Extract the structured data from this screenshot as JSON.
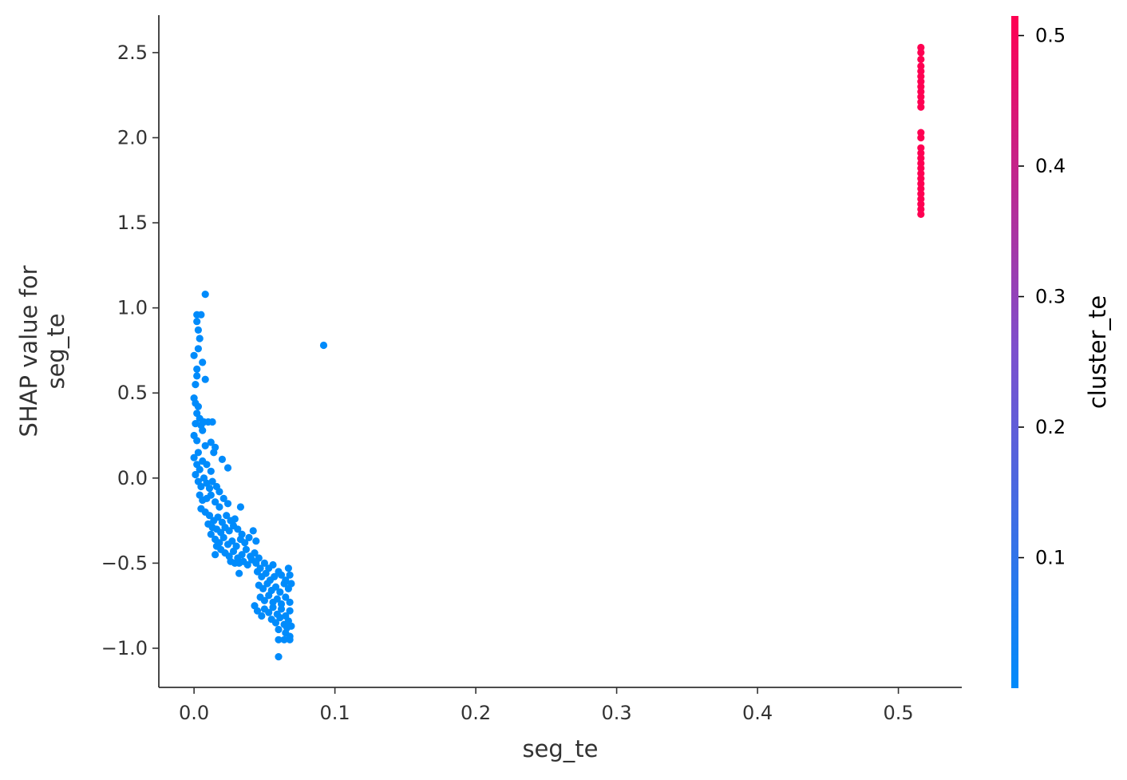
{
  "chart_data": {
    "type": "scatter",
    "title": "",
    "xlabel": "seg_te",
    "ylabel": "SHAP value for\nseg_te",
    "xlim": [
      -0.025,
      0.545
    ],
    "ylim": [
      -1.23,
      2.72
    ],
    "xticks": [
      0.0,
      0.1,
      0.2,
      0.3,
      0.4,
      0.5
    ],
    "xtick_labels": [
      "0.0",
      "0.1",
      "0.2",
      "0.3",
      "0.4",
      "0.5"
    ],
    "yticks": [
      -1.0,
      -0.5,
      0.0,
      0.5,
      1.0,
      1.5,
      2.0,
      2.5
    ],
    "ytick_labels": [
      "−1.0",
      "−0.5",
      "0.0",
      "0.5",
      "1.0",
      "1.5",
      "2.0",
      "2.5"
    ],
    "grid": false,
    "color_feature": "cluster_te",
    "colorbar": {
      "label": "cluster_te",
      "range": [
        0.0,
        0.515
      ],
      "ticks": [
        0.1,
        0.2,
        0.3,
        0.4,
        0.5
      ],
      "tick_labels": [
        "0.1",
        "0.2",
        "0.3",
        "0.4",
        "0.5"
      ],
      "low_color": "#008bfb",
      "high_color": "#ff0052"
    },
    "series": [
      {
        "color_value": 0.003,
        "color": "#008bfb",
        "points": [
          [
            0.008,
            1.08
          ],
          [
            0.002,
            0.96
          ],
          [
            0.005,
            0.96
          ],
          [
            0.002,
            0.92
          ],
          [
            0.003,
            0.87
          ],
          [
            0.004,
            0.82
          ],
          [
            0.003,
            0.76
          ],
          [
            0.0,
            0.72
          ],
          [
            0.002,
            0.64
          ],
          [
            0.006,
            0.68
          ],
          [
            0.002,
            0.6
          ],
          [
            0.008,
            0.58
          ],
          [
            0.001,
            0.55
          ],
          [
            0.0,
            0.47
          ],
          [
            0.001,
            0.44
          ],
          [
            0.003,
            0.42
          ],
          [
            0.002,
            0.38
          ],
          [
            0.004,
            0.35
          ],
          [
            0.001,
            0.32
          ],
          [
            0.005,
            0.31
          ],
          [
            0.0,
            0.25
          ],
          [
            0.002,
            0.22
          ],
          [
            0.007,
            0.33
          ],
          [
            0.01,
            0.33
          ],
          [
            0.013,
            0.33
          ],
          [
            0.006,
            0.28
          ],
          [
            0.003,
            0.15
          ],
          [
            0.008,
            0.19
          ],
          [
            0.012,
            0.21
          ],
          [
            0.015,
            0.18
          ],
          [
            0.014,
            0.15
          ],
          [
            0.0,
            0.12
          ],
          [
            0.002,
            0.08
          ],
          [
            0.004,
            0.05
          ],
          [
            0.006,
            0.1
          ],
          [
            0.009,
            0.08
          ],
          [
            0.012,
            0.04
          ],
          [
            0.02,
            0.11
          ],
          [
            0.024,
            0.06
          ],
          [
            0.001,
            0.02
          ],
          [
            0.003,
            -0.02
          ],
          [
            0.005,
            -0.05
          ],
          [
            0.007,
            0.0
          ],
          [
            0.009,
            -0.03
          ],
          [
            0.011,
            -0.06
          ],
          [
            0.013,
            -0.02
          ],
          [
            0.016,
            -0.05
          ],
          [
            0.018,
            -0.08
          ],
          [
            0.004,
            -0.1
          ],
          [
            0.006,
            -0.13
          ],
          [
            0.009,
            -0.12
          ],
          [
            0.012,
            -0.1
          ],
          [
            0.015,
            -0.14
          ],
          [
            0.018,
            -0.17
          ],
          [
            0.021,
            -0.12
          ],
          [
            0.024,
            -0.15
          ],
          [
            0.033,
            -0.17
          ],
          [
            0.005,
            -0.18
          ],
          [
            0.008,
            -0.2
          ],
          [
            0.011,
            -0.22
          ],
          [
            0.014,
            -0.25
          ],
          [
            0.017,
            -0.23
          ],
          [
            0.02,
            -0.26
          ],
          [
            0.023,
            -0.22
          ],
          [
            0.026,
            -0.25
          ],
          [
            0.029,
            -0.24
          ],
          [
            0.01,
            -0.27
          ],
          [
            0.013,
            -0.29
          ],
          [
            0.016,
            -0.3
          ],
          [
            0.019,
            -0.32
          ],
          [
            0.022,
            -0.29
          ],
          [
            0.025,
            -0.31
          ],
          [
            0.028,
            -0.28
          ],
          [
            0.031,
            -0.3
          ],
          [
            0.034,
            -0.33
          ],
          [
            0.042,
            -0.31
          ],
          [
            0.012,
            -0.33
          ],
          [
            0.015,
            -0.36
          ],
          [
            0.018,
            -0.38
          ],
          [
            0.021,
            -0.35
          ],
          [
            0.024,
            -0.39
          ],
          [
            0.027,
            -0.37
          ],
          [
            0.03,
            -0.4
          ],
          [
            0.033,
            -0.36
          ],
          [
            0.036,
            -0.38
          ],
          [
            0.039,
            -0.35
          ],
          [
            0.044,
            -0.37
          ],
          [
            0.016,
            -0.4
          ],
          [
            0.019,
            -0.42
          ],
          [
            0.015,
            -0.45
          ],
          [
            0.022,
            -0.44
          ],
          [
            0.025,
            -0.46
          ],
          [
            0.028,
            -0.43
          ],
          [
            0.031,
            -0.47
          ],
          [
            0.034,
            -0.45
          ],
          [
            0.037,
            -0.42
          ],
          [
            0.04,
            -0.46
          ],
          [
            0.043,
            -0.44
          ],
          [
            0.046,
            -0.47
          ],
          [
            0.026,
            -0.49
          ],
          [
            0.029,
            -0.5
          ],
          [
            0.032,
            -0.5
          ],
          [
            0.035,
            -0.49
          ],
          [
            0.038,
            -0.51
          ],
          [
            0.041,
            -0.48
          ],
          [
            0.044,
            -0.5
          ],
          [
            0.047,
            -0.53
          ],
          [
            0.05,
            -0.5
          ],
          [
            0.053,
            -0.53
          ],
          [
            0.056,
            -0.51
          ],
          [
            0.06,
            -0.55
          ],
          [
            0.067,
            -0.53
          ],
          [
            0.032,
            -0.56
          ],
          [
            0.045,
            -0.55
          ],
          [
            0.048,
            -0.58
          ],
          [
            0.051,
            -0.56
          ],
          [
            0.054,
            -0.6
          ],
          [
            0.057,
            -0.58
          ],
          [
            0.062,
            -0.57
          ],
          [
            0.065,
            -0.6
          ],
          [
            0.068,
            -0.57
          ],
          [
            0.046,
            -0.63
          ],
          [
            0.049,
            -0.65
          ],
          [
            0.052,
            -0.62
          ],
          [
            0.055,
            -0.66
          ],
          [
            0.058,
            -0.64
          ],
          [
            0.061,
            -0.67
          ],
          [
            0.064,
            -0.62
          ],
          [
            0.067,
            -0.65
          ],
          [
            0.069,
            -0.62
          ],
          [
            0.047,
            -0.7
          ],
          [
            0.05,
            -0.72
          ],
          [
            0.053,
            -0.69
          ],
          [
            0.056,
            -0.73
          ],
          [
            0.059,
            -0.71
          ],
          [
            0.062,
            -0.74
          ],
          [
            0.065,
            -0.7
          ],
          [
            0.068,
            -0.73
          ],
          [
            0.043,
            -0.75
          ],
          [
            0.05,
            -0.77
          ],
          [
            0.053,
            -0.79
          ],
          [
            0.056,
            -0.76
          ],
          [
            0.059,
            -0.8
          ],
          [
            0.062,
            -0.77
          ],
          [
            0.065,
            -0.81
          ],
          [
            0.068,
            -0.78
          ],
          [
            0.045,
            -0.78
          ],
          [
            0.048,
            -0.81
          ],
          [
            0.055,
            -0.83
          ],
          [
            0.058,
            -0.85
          ],
          [
            0.061,
            -0.82
          ],
          [
            0.064,
            -0.86
          ],
          [
            0.067,
            -0.84
          ],
          [
            0.069,
            -0.87
          ],
          [
            0.06,
            -0.89
          ],
          [
            0.065,
            -0.91
          ],
          [
            0.068,
            -0.93
          ],
          [
            0.066,
            -0.88
          ],
          [
            0.06,
            -0.95
          ],
          [
            0.064,
            -0.95
          ],
          [
            0.068,
            -0.95
          ],
          [
            0.06,
            -1.05
          ],
          [
            0.092,
            0.78
          ]
        ]
      },
      {
        "color_value": 0.515,
        "color": "#ff0052",
        "points": [
          [
            0.516,
            2.53
          ],
          [
            0.516,
            2.5
          ],
          [
            0.516,
            2.46
          ],
          [
            0.516,
            2.42
          ],
          [
            0.516,
            2.39
          ],
          [
            0.516,
            2.36
          ],
          [
            0.516,
            2.33
          ],
          [
            0.516,
            2.3
          ],
          [
            0.516,
            2.27
          ],
          [
            0.516,
            2.24
          ],
          [
            0.516,
            2.21
          ],
          [
            0.516,
            2.18
          ],
          [
            0.516,
            2.03
          ],
          [
            0.516,
            2.0
          ],
          [
            0.516,
            1.94
          ],
          [
            0.516,
            1.91
          ],
          [
            0.516,
            1.88
          ],
          [
            0.516,
            1.85
          ],
          [
            0.516,
            1.82
          ],
          [
            0.516,
            1.79
          ],
          [
            0.516,
            1.76
          ],
          [
            0.516,
            1.73
          ],
          [
            0.516,
            1.7
          ],
          [
            0.516,
            1.67
          ],
          [
            0.516,
            1.64
          ],
          [
            0.516,
            1.61
          ],
          [
            0.516,
            1.58
          ],
          [
            0.516,
            1.55
          ]
        ]
      }
    ]
  }
}
